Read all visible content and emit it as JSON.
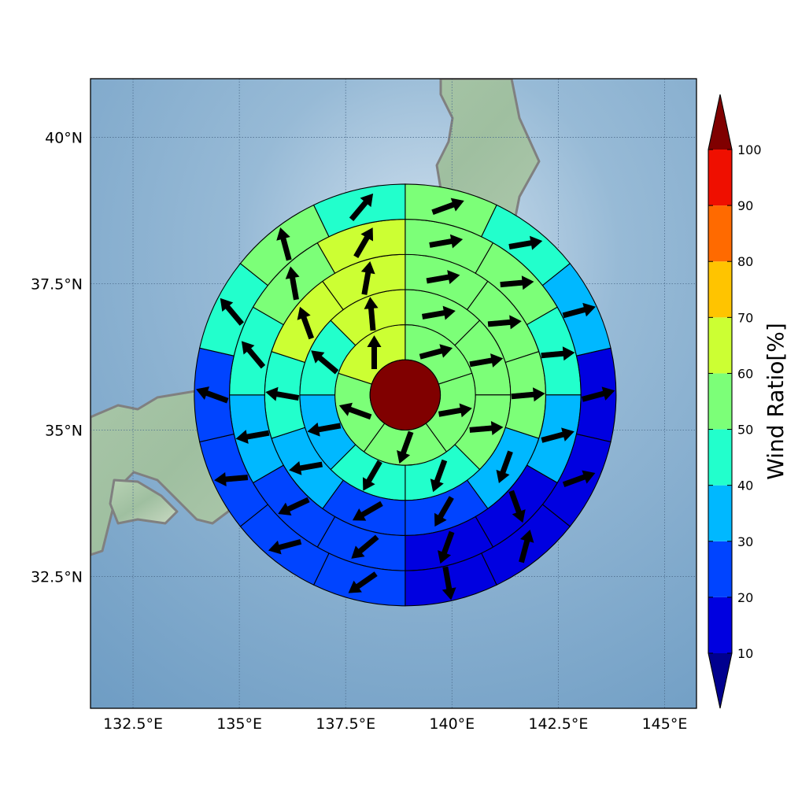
{
  "chart_data": {
    "type": "heatmap",
    "title": "",
    "map": {
      "lon_range": [
        131.5,
        145.75
      ],
      "lat_range": [
        30.25,
        41.0
      ],
      "lon_ticks": [
        "132.5°E",
        "135°E",
        "137.5°E",
        "140°E",
        "142.5°E",
        "145°E"
      ],
      "lat_ticks": [
        "32.5°N",
        "35°N",
        "37.5°N",
        "40°N"
      ],
      "grid": true,
      "background": "shaded-relief",
      "coastline_color": "#808080"
    },
    "polar_grid": {
      "center": {
        "lon": 138.9,
        "lat": 35.6
      },
      "ring_edges_deg": [
        0.6,
        1.2,
        1.8,
        2.4,
        3.0,
        3.6
      ],
      "sector_counts": [
        5,
        8,
        10,
        12,
        14
      ],
      "sector_start_bearing_deg": 0,
      "core_color": "#800000",
      "wind_ratio_pct": [
        [
          55,
          55,
          50,
          55,
          65
        ],
        [
          55,
          55,
          55,
          45,
          40,
          30,
          45,
          60
        ],
        [
          55,
          55,
          50,
          35,
          20,
          25,
          30,
          45,
          60,
          60
        ],
        [
          55,
          55,
          45,
          30,
          15,
          15,
          20,
          25,
          30,
          40,
          55,
          65
        ],
        [
          55,
          45,
          30,
          15,
          15,
          10,
          15,
          20,
          25,
          20,
          25,
          45,
          50,
          45
        ]
      ],
      "wind_dir_deg": [
        [
          75,
          80,
          200,
          290,
          0
        ],
        [
          80,
          80,
          85,
          200,
          210,
          260,
          310,
          355
        ],
        [
          80,
          85,
          85,
          200,
          210,
          240,
          260,
          280,
          340,
          10
        ],
        [
          80,
          85,
          85,
          75,
          160,
          200,
          230,
          245,
          260,
          320,
          350,
          30
        ],
        [
          70,
          80,
          75,
          75,
          70,
          15,
          170,
          235,
          255,
          265,
          290,
          320,
          345,
          40
        ]
      ]
    },
    "colorbar": {
      "label": "Wind Ratio[%]",
      "ticks": [
        "10",
        "20",
        "30",
        "40",
        "50",
        "60",
        "70",
        "80",
        "90",
        "100"
      ],
      "min": 10,
      "max": 100,
      "extend": "both",
      "colors": [
        "#0000e0",
        "#0044ff",
        "#00b8ff",
        "#22ffcc",
        "#7cff78",
        "#ccff33",
        "#ffc400",
        "#ff6a00",
        "#ef0f00"
      ],
      "under_color": "#00008f",
      "over_color": "#800000"
    }
  }
}
